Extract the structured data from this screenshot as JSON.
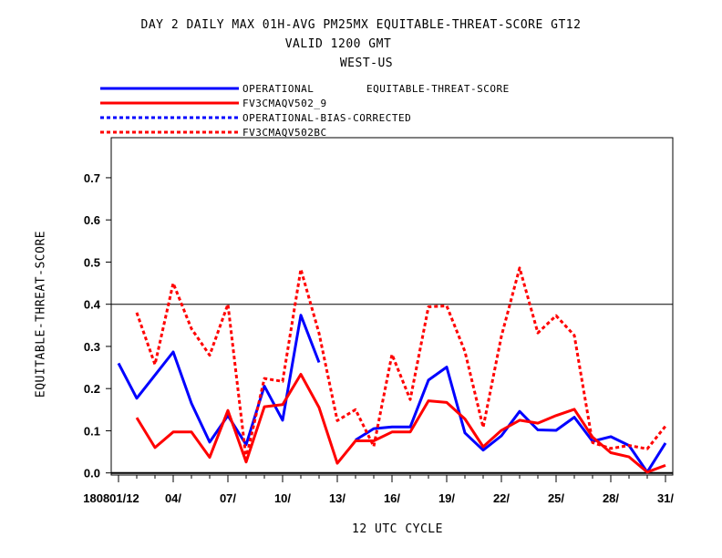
{
  "titles": {
    "line1": "DAY 2 DAILY MAX   01H-AVG PM25MX EQUITABLE-THREAT-SCORE GT12",
    "line2": "VALID 1200 GMT",
    "line3": "WEST-US"
  },
  "legend_header": "EQUITABLE-THREAT-SCORE",
  "colors": {
    "blue": "#0000ff",
    "red": "#ff0000",
    "axis": "#000000"
  },
  "chart_data": {
    "type": "line",
    "title": "DAY 2 DAILY MAX   01H-AVG PM25MX EQUITABLE-THREAT-SCORE GT12",
    "xlabel": "12 UTC CYCLE",
    "ylabel": "EQUITABLE-THREAT-SCORE",
    "x_ticks": [
      {
        "day": 1,
        "label": "180801/12"
      },
      {
        "day": 4,
        "label": "04/"
      },
      {
        "day": 7,
        "label": "07/"
      },
      {
        "day": 10,
        "label": "10/"
      },
      {
        "day": 13,
        "label": "13/"
      },
      {
        "day": 16,
        "label": "16/"
      },
      {
        "day": 19,
        "label": "19/"
      },
      {
        "day": 22,
        "label": "22/"
      },
      {
        "day": 25,
        "label": "25/"
      },
      {
        "day": 28,
        "label": "28/"
      },
      {
        "day": 31,
        "label": "31/"
      }
    ],
    "xlim": [
      0.6,
      31.4
    ],
    "ylim": [
      -0.005,
      0.795
    ],
    "y_ticks": [
      "0.0",
      "0.1",
      "0.2",
      "0.3",
      "0.4",
      "0.5",
      "0.6",
      "0.7"
    ],
    "reference_lines": [
      0.0,
      0.4
    ],
    "series": [
      {
        "name": "OPERATIONAL",
        "color": "#0000ff",
        "dash": "solid",
        "points": [
          [
            1,
            0.26
          ],
          [
            2,
            0.177
          ],
          [
            3,
            0.232
          ],
          [
            4,
            0.287
          ],
          [
            5,
            0.165
          ],
          [
            6,
            0.073
          ],
          [
            7,
            0.136
          ],
          [
            8,
            0.067
          ],
          [
            9,
            0.206
          ],
          [
            10,
            0.125
          ],
          [
            11,
            0.374
          ],
          [
            12,
            0.262
          ],
          null,
          [
            14,
            0.078
          ],
          [
            15,
            0.105
          ],
          [
            16,
            0.109
          ],
          [
            17,
            0.109
          ],
          [
            18,
            0.22
          ],
          [
            19,
            0.251
          ],
          [
            20,
            0.095
          ],
          [
            21,
            0.054
          ],
          [
            22,
            0.088
          ],
          [
            23,
            0.146
          ],
          [
            24,
            0.102
          ],
          [
            25,
            0.101
          ],
          [
            26,
            0.132
          ],
          [
            27,
            0.075
          ],
          [
            28,
            0.086
          ],
          [
            29,
            0.065
          ],
          [
            30,
            0.002
          ],
          [
            31,
            0.071
          ]
        ]
      },
      {
        "name": "FV3CMAQV502_9",
        "color": "#ff0000",
        "dash": "solid",
        "points": [
          null,
          [
            2,
            0.131
          ],
          [
            3,
            0.06
          ],
          [
            4,
            0.097
          ],
          [
            5,
            0.097
          ],
          [
            6,
            0.037
          ],
          [
            7,
            0.148
          ],
          [
            8,
            0.026
          ],
          [
            9,
            0.157
          ],
          [
            10,
            0.162
          ],
          [
            11,
            0.234
          ],
          [
            12,
            0.155
          ],
          [
            13,
            0.023
          ],
          [
            14,
            0.076
          ],
          [
            15,
            0.076
          ],
          [
            16,
            0.097
          ],
          [
            17,
            0.097
          ],
          [
            18,
            0.171
          ],
          [
            19,
            0.167
          ],
          [
            20,
            0.128
          ],
          [
            21,
            0.062
          ],
          [
            22,
            0.101
          ],
          [
            23,
            0.125
          ],
          [
            24,
            0.118
          ],
          [
            25,
            0.136
          ],
          [
            26,
            0.151
          ],
          [
            27,
            0.085
          ],
          [
            28,
            0.048
          ],
          [
            29,
            0.038
          ],
          [
            30,
            0.002
          ],
          [
            31,
            0.018
          ]
        ]
      },
      {
        "name": "OPERATIONAL-BIAS-CORRECTED",
        "color": "#0000ff",
        "dash": "dashed",
        "points": []
      },
      {
        "name": "FV3CMAQV502BC",
        "color": "#ff0000",
        "dash": "dashed",
        "points": [
          null,
          [
            2,
            0.38
          ],
          [
            3,
            0.257
          ],
          [
            4,
            0.45
          ],
          [
            5,
            0.342
          ],
          [
            6,
            0.279
          ],
          [
            7,
            0.4
          ],
          [
            8,
            0.034
          ],
          [
            9,
            0.224
          ],
          [
            10,
            0.217
          ],
          [
            11,
            0.483
          ],
          [
            12,
            0.331
          ],
          [
            13,
            0.124
          ],
          [
            14,
            0.15
          ],
          [
            15,
            0.063
          ],
          [
            16,
            0.281
          ],
          [
            17,
            0.174
          ],
          [
            18,
            0.394
          ],
          [
            19,
            0.396
          ],
          [
            20,
            0.288
          ],
          [
            21,
            0.108
          ],
          [
            22,
            0.324
          ],
          [
            23,
            0.486
          ],
          [
            24,
            0.332
          ],
          [
            25,
            0.373
          ],
          [
            26,
            0.326
          ],
          [
            27,
            0.072
          ],
          [
            28,
            0.058
          ],
          [
            29,
            0.065
          ],
          [
            30,
            0.057
          ],
          [
            31,
            0.111
          ]
        ]
      }
    ]
  }
}
